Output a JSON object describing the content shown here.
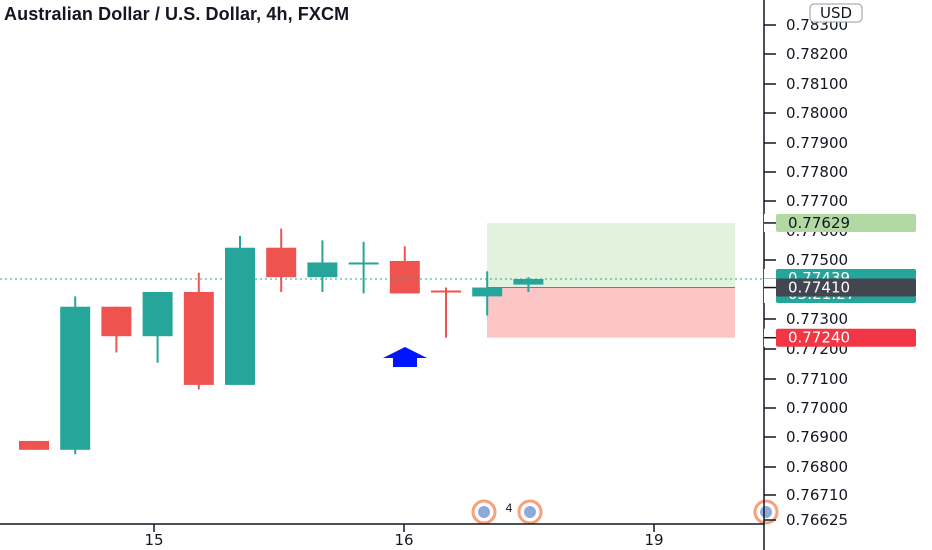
{
  "header": {
    "title": "Australian Dollar / U.S. Dollar, 4h, FXCM",
    "currency": "USD"
  },
  "event_badge": {
    "count": "4"
  },
  "chart_data": {
    "type": "candlestick",
    "title": "Australian Dollar / U.S. Dollar, 4h, FXCM",
    "y_axis": {
      "ticks": [
        "0.78300",
        "0.78200",
        "0.78100",
        "0.78000",
        "0.77900",
        "0.77800",
        "0.77700",
        "0.77600",
        "0.77500",
        "0.77400",
        "0.77300",
        "0.77200",
        "0.77100",
        "0.77000",
        "0.76900",
        "0.76800",
        "0.76710",
        "0.76625"
      ],
      "range": [
        0.76625,
        0.783
      ]
    },
    "x_axis": {
      "ticks": [
        "15",
        "16",
        "19"
      ]
    },
    "candles": [
      {
        "index": 0,
        "open": 0.7689,
        "high": 0.7689,
        "low": 0.7686,
        "close": 0.7686,
        "color": "red"
      },
      {
        "index": 1,
        "open": 0.7686,
        "high": 0.7738,
        "low": 0.76845,
        "close": 0.77345,
        "color": "green"
      },
      {
        "index": 2,
        "open": 0.77345,
        "high": 0.77345,
        "low": 0.7719,
        "close": 0.77245,
        "color": "red"
      },
      {
        "index": 3,
        "open": 0.77245,
        "high": 0.77395,
        "low": 0.77155,
        "close": 0.77395,
        "color": "green"
      },
      {
        "index": 4,
        "open": 0.77395,
        "high": 0.7746,
        "low": 0.77065,
        "close": 0.7708,
        "color": "red"
      },
      {
        "index": 5,
        "open": 0.7708,
        "high": 0.77585,
        "low": 0.7708,
        "close": 0.77545,
        "color": "green"
      },
      {
        "index": 6,
        "open": 0.77545,
        "high": 0.7761,
        "low": 0.77395,
        "close": 0.77445,
        "color": "red"
      },
      {
        "index": 7,
        "open": 0.77445,
        "high": 0.7757,
        "low": 0.77395,
        "close": 0.77495,
        "color": "green"
      },
      {
        "index": 8,
        "open": 0.77495,
        "high": 0.77565,
        "low": 0.7739,
        "close": 0.77495,
        "color": "green"
      },
      {
        "index": 9,
        "open": 0.775,
        "high": 0.7755,
        "low": 0.7739,
        "close": 0.7739,
        "color": "red"
      },
      {
        "index": 10,
        "open": 0.774,
        "high": 0.7741,
        "low": 0.7724,
        "close": 0.774,
        "color": "red"
      },
      {
        "index": 11,
        "open": 0.7738,
        "high": 0.77465,
        "low": 0.77315,
        "close": 0.7741,
        "color": "green"
      },
      {
        "index": 12,
        "open": 0.7742,
        "high": 0.77445,
        "low": 0.77395,
        "close": 0.77439,
        "color": "green"
      }
    ],
    "position": {
      "entry": 0.7741,
      "target": 0.77629,
      "stop": 0.7724
    },
    "price_labels": [
      {
        "name": "target",
        "value": "0.77629",
        "bg": "#b2d8a3",
        "fg": "#131722"
      },
      {
        "name": "current",
        "value": "0.77439",
        "sub": "03:21:27",
        "bg": "#26a69a",
        "fg": "#ffffff"
      },
      {
        "name": "entry",
        "value": "0.77410",
        "bg": "#434651",
        "fg": "#ffffff"
      },
      {
        "name": "stop",
        "value": "0.77240",
        "bg": "#f23645",
        "fg": "#ffffff"
      }
    ],
    "colors": {
      "up": "#26a69a",
      "down": "#ef5350",
      "profit_zone": "#e3f2dd",
      "loss_zone": "#fcc6c6",
      "arrow": "#0015ff"
    },
    "grid": false
  }
}
